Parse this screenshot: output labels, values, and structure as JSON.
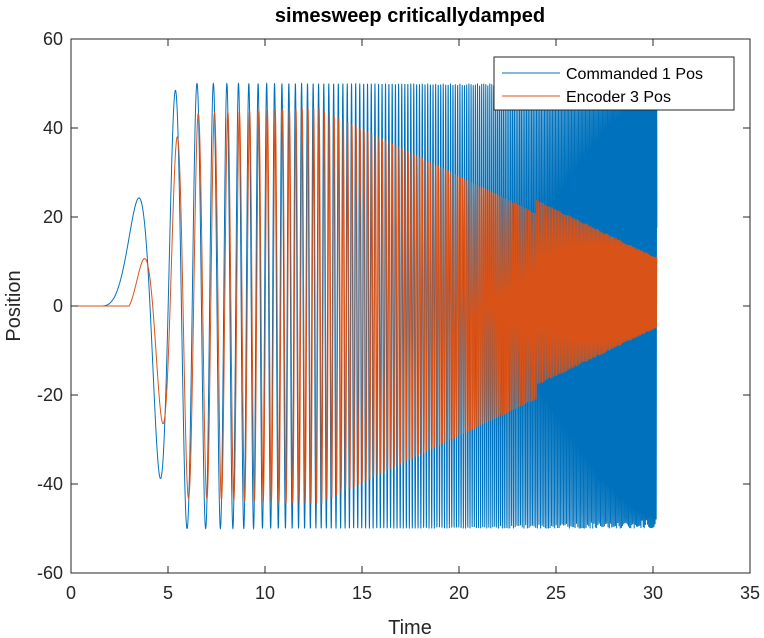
{
  "chart_data": {
    "type": "line",
    "title": "simesweep criticallydamped",
    "xlabel": "Time",
    "ylabel": "Position",
    "xlim": [
      0,
      35
    ],
    "ylim": [
      -60,
      60
    ],
    "xticks": [
      "0",
      "5",
      "10",
      "15",
      "20",
      "25",
      "30",
      "35"
    ],
    "yticks": [
      "-60",
      "-40",
      "-20",
      "0",
      "20",
      "40",
      "60"
    ],
    "grid": false,
    "legend_position": "top-right",
    "series": [
      {
        "name": "Commanded 1 Pos",
        "color": "#0072BD",
        "description_points": {
          "x": [
            0,
            1.5,
            2.5,
            3.5,
            4.5,
            5.5,
            6.2,
            7.0,
            7.8,
            8.5,
            9.1,
            9.7,
            10.3,
            10.8,
            11.3,
            11.8,
            12.3,
            12.8,
            13.2,
            13.6,
            14.0,
            14.5,
            15.0,
            15.5,
            16.0,
            18.0,
            20.0,
            22.0,
            24.0,
            26.0,
            28.0,
            30.2
          ],
          "y": [
            0,
            1,
            5,
            20,
            40,
            50,
            40,
            0,
            -50,
            -10,
            50,
            0,
            -50,
            10,
            50,
            0,
            -50,
            20,
            50,
            0,
            -50,
            30,
            50,
            -50,
            50,
            50,
            50,
            50,
            50,
            46,
            45,
            44
          ],
          "envelope_max": 50,
          "envelope_min": -50,
          "end_x": 30.2
        }
      },
      {
        "name": "Encoder 3 Pos",
        "color": "#D95319",
        "description_points": {
          "x": [
            0,
            3.0,
            3.5,
            4.5,
            5.3,
            5.8,
            6.5,
            7.2,
            7.9,
            8.5,
            9.2,
            9.8,
            10.4,
            11.0,
            11.5,
            12.1,
            12.6,
            13.2,
            14.0,
            15.0,
            17.0,
            19.0,
            21.0,
            23.0,
            25.0,
            27.0,
            30.2
          ],
          "y": [
            0,
            0,
            5,
            25,
            40,
            43,
            30,
            -10,
            -53,
            -30,
            41,
            0,
            -44,
            10,
            46,
            0,
            -43,
            45,
            -41,
            43,
            40,
            36,
            34,
            28,
            20,
            14,
            10
          ],
          "envelope_end": 8,
          "end_x": 30.2
        }
      }
    ]
  }
}
